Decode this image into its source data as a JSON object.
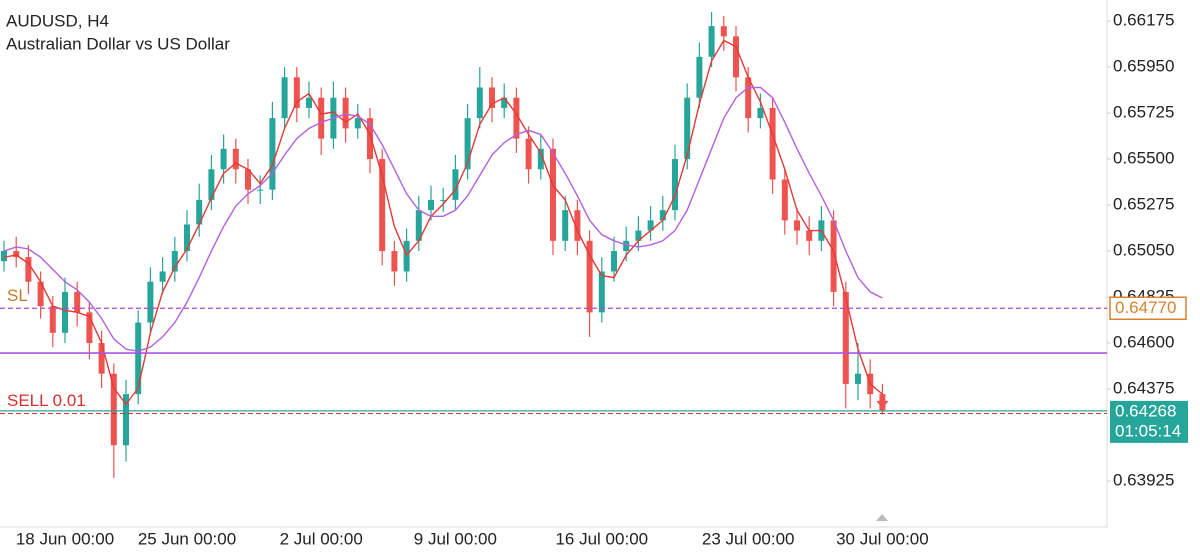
{
  "chart_data": {
    "type": "candlestick",
    "title": "AUDUSD, H4",
    "subtitle": "Australian Dollar vs US Dollar",
    "up_color": "#26a69a",
    "down_color": "#ef5350",
    "categories": [
      null,
      null,
      null,
      null,
      null,
      "18 Jun 00:00",
      null,
      null,
      null,
      null,
      null,
      null,
      null,
      null,
      null,
      "25 Jun 00:00",
      null,
      null,
      null,
      null,
      null,
      null,
      null,
      null,
      null,
      null,
      "2 Jul 00:00",
      null,
      null,
      null,
      null,
      null,
      null,
      null,
      null,
      null,
      null,
      "9 Jul 00:00",
      null,
      null,
      null,
      null,
      null,
      null,
      null,
      null,
      null,
      null,
      null,
      "16 Jul 00:00",
      null,
      null,
      null,
      null,
      null,
      null,
      null,
      null,
      null,
      null,
      null,
      "23 Jul 00:00",
      null,
      null,
      null,
      null,
      null,
      null,
      null,
      null,
      null,
      null,
      "30 Jul 00:00"
    ],
    "ohlc": [
      [
        0.65,
        0.651,
        0.6495,
        0.6505
      ],
      [
        0.6505,
        0.6512,
        0.6497,
        0.6502
      ],
      [
        0.6502,
        0.6508,
        0.6484,
        0.649
      ],
      [
        0.649,
        0.6495,
        0.6472,
        0.6478
      ],
      [
        0.6478,
        0.6483,
        0.6458,
        0.6465
      ],
      [
        0.6465,
        0.6492,
        0.646,
        0.6485
      ],
      [
        0.6485,
        0.649,
        0.6468,
        0.6475
      ],
      [
        0.6475,
        0.648,
        0.6452,
        0.646
      ],
      [
        0.646,
        0.6466,
        0.6438,
        0.6445
      ],
      [
        0.6445,
        0.645,
        0.6394,
        0.641
      ],
      [
        0.641,
        0.6442,
        0.6402,
        0.6435
      ],
      [
        0.6435,
        0.6476,
        0.643,
        0.647
      ],
      [
        0.647,
        0.6497,
        0.6465,
        0.649
      ],
      [
        0.649,
        0.6502,
        0.6484,
        0.6495
      ],
      [
        0.6495,
        0.6512,
        0.649,
        0.6505
      ],
      [
        0.6505,
        0.6525,
        0.65,
        0.6518
      ],
      [
        0.6518,
        0.6538,
        0.6512,
        0.653
      ],
      [
        0.653,
        0.6552,
        0.6525,
        0.6545
      ],
      [
        0.6545,
        0.6562,
        0.6538,
        0.6555
      ],
      [
        0.6555,
        0.656,
        0.6538,
        0.6545
      ],
      [
        0.6545,
        0.655,
        0.6528,
        0.6535
      ],
      [
        0.6535,
        0.6542,
        0.6528,
        0.6535
      ],
      [
        0.6535,
        0.6578,
        0.653,
        0.657
      ],
      [
        0.657,
        0.6595,
        0.6565,
        0.659
      ],
      [
        0.659,
        0.6595,
        0.6568,
        0.6575
      ],
      [
        0.6575,
        0.6588,
        0.657,
        0.658
      ],
      [
        0.658,
        0.6585,
        0.6552,
        0.656
      ],
      [
        0.656,
        0.6588,
        0.6555,
        0.658
      ],
      [
        0.658,
        0.6585,
        0.6558,
        0.6565
      ],
      [
        0.6565,
        0.6577,
        0.656,
        0.657
      ],
      [
        0.657,
        0.6575,
        0.6543,
        0.655
      ],
      [
        0.655,
        0.6555,
        0.6498,
        0.6505
      ],
      [
        0.6505,
        0.651,
        0.6488,
        0.6495
      ],
      [
        0.6495,
        0.6516,
        0.649,
        0.651
      ],
      [
        0.651,
        0.6532,
        0.6505,
        0.6525
      ],
      [
        0.6525,
        0.6537,
        0.652,
        0.653
      ],
      [
        0.653,
        0.6536,
        0.6524,
        0.653
      ],
      [
        0.653,
        0.6552,
        0.6525,
        0.6545
      ],
      [
        0.6545,
        0.6577,
        0.654,
        0.657
      ],
      [
        0.657,
        0.6595,
        0.6565,
        0.6585
      ],
      [
        0.6585,
        0.659,
        0.6568,
        0.6575
      ],
      [
        0.6575,
        0.6587,
        0.657,
        0.658
      ],
      [
        0.658,
        0.6585,
        0.6553,
        0.656
      ],
      [
        0.656,
        0.6566,
        0.6538,
        0.6545
      ],
      [
        0.6545,
        0.6562,
        0.654,
        0.6555
      ],
      [
        0.6555,
        0.656,
        0.6503,
        0.651
      ],
      [
        0.651,
        0.6532,
        0.6505,
        0.6525
      ],
      [
        0.6525,
        0.653,
        0.6503,
        0.651
      ],
      [
        0.651,
        0.6515,
        0.6463,
        0.6475
      ],
      [
        0.6475,
        0.6502,
        0.647,
        0.6495
      ],
      [
        0.6495,
        0.6512,
        0.649,
        0.6505
      ],
      [
        0.6505,
        0.6517,
        0.65,
        0.651
      ],
      [
        0.651,
        0.6522,
        0.6505,
        0.6515
      ],
      [
        0.6515,
        0.6527,
        0.651,
        0.652
      ],
      [
        0.652,
        0.6532,
        0.6515,
        0.6525
      ],
      [
        0.6525,
        0.6557,
        0.652,
        0.655
      ],
      [
        0.655,
        0.6587,
        0.6545,
        0.658
      ],
      [
        0.658,
        0.6607,
        0.6575,
        0.66
      ],
      [
        0.66,
        0.6622,
        0.6595,
        0.6615
      ],
      [
        0.6615,
        0.662,
        0.6603,
        0.661
      ],
      [
        0.661,
        0.6615,
        0.6583,
        0.659
      ],
      [
        0.659,
        0.6595,
        0.6563,
        0.657
      ],
      [
        0.657,
        0.6582,
        0.6565,
        0.6575
      ],
      [
        0.6575,
        0.658,
        0.6533,
        0.654
      ],
      [
        0.654,
        0.6545,
        0.6513,
        0.652
      ],
      [
        0.652,
        0.6526,
        0.6508,
        0.6515
      ],
      [
        0.6515,
        0.6522,
        0.6503,
        0.651
      ],
      [
        0.651,
        0.6527,
        0.6505,
        0.652
      ],
      [
        0.652,
        0.6525,
        0.6478,
        0.6485
      ],
      [
        0.6485,
        0.649,
        0.6428,
        0.644
      ],
      [
        0.644,
        0.646,
        0.6432,
        0.6445
      ],
      [
        0.6445,
        0.6452,
        0.6428,
        0.6435
      ],
      [
        0.6435,
        0.644,
        0.6425,
        0.6427
      ]
    ],
    "series": [
      {
        "color": "#e53935",
        "values": [
          0.6502,
          0.6503,
          0.6499,
          0.649,
          0.6478,
          0.6476,
          0.6475,
          0.6473,
          0.646,
          0.6438,
          0.643,
          0.6438,
          0.6465,
          0.6485,
          0.6497,
          0.6506,
          0.6518,
          0.6531,
          0.6543,
          0.6548,
          0.6545,
          0.6538,
          0.6547,
          0.6565,
          0.6578,
          0.6582,
          0.6572,
          0.6573,
          0.6568,
          0.6572,
          0.6562,
          0.6542,
          0.6517,
          0.6503,
          0.651,
          0.6522,
          0.6528,
          0.6535,
          0.6548,
          0.6567,
          0.6577,
          0.658,
          0.6572,
          0.6562,
          0.6553,
          0.6537,
          0.653,
          0.6515,
          0.6503,
          0.6493,
          0.6492,
          0.6503,
          0.651,
          0.6515,
          0.652,
          0.6532,
          0.6552,
          0.6577,
          0.6598,
          0.6608,
          0.6605,
          0.659,
          0.6578,
          0.6562,
          0.6545,
          0.6525,
          0.6515,
          0.6515,
          0.6505,
          0.6482,
          0.6457,
          0.644,
          0.6435
        ]
      },
      {
        "color": "#b460e0",
        "values": [
          0.6505,
          0.6507,
          0.6506,
          0.6502,
          0.6496,
          0.649,
          0.6486,
          0.648,
          0.6472,
          0.6462,
          0.6457,
          0.6456,
          0.6458,
          0.6463,
          0.647,
          0.648,
          0.6492,
          0.6505,
          0.6517,
          0.6527,
          0.6533,
          0.6537,
          0.6543,
          0.6552,
          0.656,
          0.6565,
          0.6568,
          0.657,
          0.6572,
          0.6571,
          0.6567,
          0.6557,
          0.6545,
          0.6533,
          0.6525,
          0.6522,
          0.6522,
          0.6525,
          0.6532,
          0.6542,
          0.6552,
          0.6558,
          0.6562,
          0.6564,
          0.6562,
          0.6553,
          0.6543,
          0.6532,
          0.652,
          0.6513,
          0.651,
          0.6508,
          0.6507,
          0.6508,
          0.651,
          0.6515,
          0.6525,
          0.654,
          0.6555,
          0.657,
          0.658,
          0.6585,
          0.6585,
          0.658,
          0.6568,
          0.6555,
          0.6543,
          0.6532,
          0.652,
          0.6505,
          0.6492,
          0.6485,
          0.6482
        ]
      }
    ],
    "ylim": [
      0.637,
      0.66278
    ],
    "yticks": [
      0.66175,
      {
        "value": 0.6595,
        "label": "0.65950"
      },
      0.65725,
      {
        "value": 0.655,
        "label": "0.65500"
      },
      0.65275,
      {
        "value": 0.6505,
        "label": "0.65050"
      },
      0.64825,
      {
        "value": 0.646,
        "label": "0.64600"
      },
      0.64375,
      0.63925
    ],
    "stop_loss": {
      "label": "SL",
      "value": 0.6477,
      "value_label": "0.64770",
      "color": "#b04ad0"
    },
    "level": {
      "value": 0.64551,
      "color": "#a855e0"
    },
    "order": {
      "label": "SELL 0.01",
      "value": 0.64255,
      "color": "#d32f2f"
    },
    "price": {
      "value": 0.64268,
      "value_label": "0.64268",
      "timer": "01:05:14",
      "color": "#26a69a"
    }
  }
}
